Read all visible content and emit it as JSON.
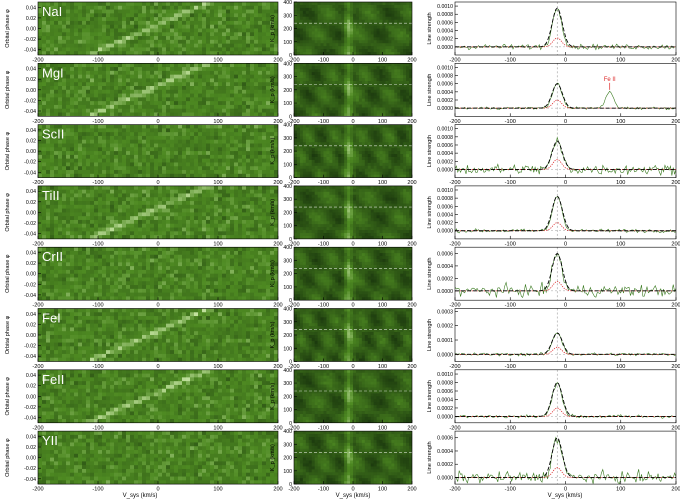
{
  "colors": {
    "map_dark": "#1c3a0e",
    "map_mid": "#4e8a22",
    "map_light": "#d6f0b4",
    "dashed_line": "#000000",
    "observed_line": "#3a7a20",
    "model_line": "#dd2a2a",
    "guide_line": "#888888"
  },
  "labels": {
    "left_ylabel": "Orbital phase φ",
    "mid_ylabel": "K_p (km/s)",
    "right_ylabel": "Line strength",
    "left_xlabel": "V_sys (km/s)",
    "mid_xlabel": "V_sys (km/s)",
    "right_xlabel": "V_sys (km/s)",
    "annotation_feii": "Fe II"
  },
  "chart_data": {
    "type": "multi-panel",
    "grid": "8 rows x 3 columns",
    "left_column": {
      "kind": "phase-velocity map",
      "x_ticks": [
        -200,
        -100,
        0,
        100,
        200
      ],
      "xlim": [
        -200,
        200
      ],
      "y_ticks": [
        0.04,
        0.02,
        0.0,
        -0.02,
        -0.04
      ],
      "ylim": [
        -0.05,
        0.05
      ]
    },
    "middle_column": {
      "kind": "Kp-Vsys map",
      "x_ticks": [
        -200,
        -100,
        0,
        100,
        200
      ],
      "xlim": [
        -200,
        200
      ],
      "y_ticks": [
        400,
        300,
        200,
        100,
        0
      ],
      "ylim": [
        0,
        400
      ],
      "dashed_kp": 240,
      "peak_vsys": -15
    },
    "right_column": {
      "kind": "line strength profile",
      "x_ticks": [
        -200,
        -100,
        0,
        100,
        200
      ],
      "xlim": [
        -200,
        200
      ],
      "vertical_line_at": -15
    },
    "rows": [
      {
        "species": "NaI",
        "trail_visible": true,
        "ylim": [
          -0.0002,
          0.0011
        ],
        "y_ticks": [
          "0.0010",
          "0.0008",
          "0.0006",
          "0.0004",
          "0.0002",
          "0.0000"
        ],
        "peak": 0.00095,
        "model_peak": 0.00022,
        "noise": 6e-05,
        "extra_peak": null
      },
      {
        "species": "MgI",
        "trail_visible": true,
        "ylim": [
          -0.0002,
          0.0011
        ],
        "y_ticks": [
          "0.0010",
          "0.0008",
          "0.0006",
          "0.0004",
          "0.0002",
          "0.0000"
        ],
        "peak": 0.0006,
        "model_peak": 0.0002,
        "noise": 3e-05,
        "extra_peak": {
          "x": 80,
          "height": 0.0004
        }
      },
      {
        "species": "ScII",
        "trail_visible": false,
        "ylim": [
          -0.0002,
          0.0011
        ],
        "y_ticks": [
          "0.0010",
          "0.0008",
          "0.0006",
          "0.0004",
          "0.0002",
          "0.0000"
        ],
        "peak": 0.0007,
        "model_peak": 0.00025,
        "noise": 0.00012,
        "extra_peak": null
      },
      {
        "species": "TiII",
        "trail_visible": true,
        "ylim": [
          -0.0002,
          0.0011
        ],
        "y_ticks": [
          "0.0010",
          "0.0008",
          "0.0006",
          "0.0004",
          "0.0002",
          "0.0000"
        ],
        "peak": 0.00085,
        "model_peak": 0.0002,
        "noise": 4e-05,
        "extra_peak": null
      },
      {
        "species": "CrII",
        "trail_visible": false,
        "ylim": [
          -0.00015,
          0.0007
        ],
        "y_ticks": [
          "0.0006",
          "0.0004",
          "0.0002",
          "0.0000"
        ],
        "peak": 0.0006,
        "model_peak": 0.00015,
        "noise": 9e-05,
        "extra_peak": null
      },
      {
        "species": "FeI",
        "trail_visible": true,
        "ylim": [
          -5e-05,
          0.00032
        ],
        "y_ticks": [
          "0.0003",
          "0.0002",
          "0.0001",
          "0.0000"
        ],
        "peak": 0.00015,
        "model_peak": 5e-05,
        "noise": 1e-05,
        "extra_peak": null
      },
      {
        "species": "FeII",
        "trail_visible": true,
        "ylim": [
          -0.00015,
          0.0011
        ],
        "y_ticks": [
          "0.0010",
          "0.0008",
          "0.0006",
          "0.0004",
          "0.0002",
          "0.0000"
        ],
        "peak": 0.0008,
        "model_peak": 0.0002,
        "noise": 4e-05,
        "extra_peak": null
      },
      {
        "species": "YII",
        "trail_visible": false,
        "ylim": [
          -0.0001,
          0.0007
        ],
        "y_ticks": [
          "0.0006",
          "0.0004",
          "0.0002",
          "0.0000"
        ],
        "peak": 0.0006,
        "model_peak": 0.00015,
        "noise": 8e-05,
        "extra_peak": null
      }
    ]
  }
}
